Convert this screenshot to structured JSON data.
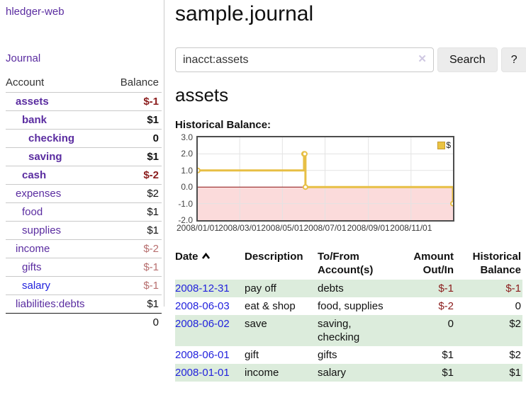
{
  "app": {
    "title": "hledger-web",
    "nav": {
      "journal": "Journal"
    }
  },
  "sidebar": {
    "accounts_table": {
      "headers": {
        "account": "Account",
        "balance": "Balance"
      },
      "rows": [
        {
          "name": "assets",
          "depth": 1,
          "bold": true,
          "balance": "$-1",
          "link_state": "visited"
        },
        {
          "name": "bank",
          "depth": 2,
          "bold": true,
          "balance": "$1",
          "link_state": "visited"
        },
        {
          "name": "checking",
          "depth": 3,
          "bold": true,
          "balance": "0",
          "link_state": "visited"
        },
        {
          "name": "saving",
          "depth": 3,
          "bold": true,
          "balance": "$1",
          "link_state": "visited"
        },
        {
          "name": "cash",
          "depth": 2,
          "bold": true,
          "balance": "$-2",
          "link_state": "visited"
        },
        {
          "name": "expenses",
          "depth": 1,
          "bold": false,
          "balance": "$2",
          "link_state": "visited"
        },
        {
          "name": "food",
          "depth": 2,
          "bold": false,
          "balance": "$1",
          "link_state": "visited"
        },
        {
          "name": "supplies",
          "depth": 2,
          "bold": false,
          "balance": "$1",
          "link_state": "visited"
        },
        {
          "name": "income",
          "depth": 1,
          "bold": false,
          "balance": "$-2",
          "link_state": "visited"
        },
        {
          "name": "gifts",
          "depth": 2,
          "bold": false,
          "balance": "$-1",
          "link_state": "visited"
        },
        {
          "name": "salary",
          "depth": 2,
          "bold": false,
          "balance": "$-1",
          "link_state": "unvisited"
        },
        {
          "name": "liabilities:debts",
          "depth": 1,
          "bold": false,
          "balance": "$1",
          "link_state": "visited"
        }
      ],
      "total": "0"
    }
  },
  "main": {
    "title": "sample.journal",
    "search": {
      "value": "inacct:assets",
      "clear_icon": "✕",
      "button_label": "Search",
      "help_label": "?"
    },
    "account_heading": "assets",
    "chart_label": "Historical Balance:"
  },
  "chart_data": {
    "type": "line",
    "title": "Historical Balance:",
    "step": true,
    "x_range": [
      "2008-01-01",
      "2008-12-31"
    ],
    "ylim": [
      -2,
      3
    ],
    "x_ticks": [
      {
        "label": "2008/01/01",
        "date": "2008-01-01"
      },
      {
        "label": "2008/03/01",
        "date": "2008-03-01"
      },
      {
        "label": "2008/05/01",
        "date": "2008-05-01"
      },
      {
        "label": "2008/07/01",
        "date": "2008-07-01"
      },
      {
        "label": "2008/09/01",
        "date": "2008-09-01"
      },
      {
        "label": "2008/11/01",
        "date": "2008-11-01"
      }
    ],
    "y_ticks": [
      {
        "label": "3.0",
        "value": 3
      },
      {
        "label": "2.0",
        "value": 2
      },
      {
        "label": "1.0",
        "value": 1
      },
      {
        "label": "0.0",
        "value": 0
      },
      {
        "label": "-1.0",
        "value": -1
      },
      {
        "label": "-2.0",
        "value": -2
      }
    ],
    "series": [
      {
        "name": "$",
        "color": "#e7bf45",
        "points": [
          [
            "2008-01-01",
            1
          ],
          [
            "2008-06-01",
            2
          ],
          [
            "2008-06-02",
            2
          ],
          [
            "2008-06-03",
            0
          ],
          [
            "2008-12-31",
            -1
          ]
        ]
      }
    ],
    "legend": {
      "label": "$",
      "position": "top-right"
    },
    "colors": {
      "grid": "#e3e3e3",
      "border": "#4d4d4d",
      "negative_region": "#fbdbdb",
      "zero_line": "#8b1010",
      "marker_fill": "#ffffff"
    }
  },
  "transactions": {
    "columns": [
      {
        "label": "Date",
        "sorted": "asc"
      },
      {
        "label": "Description"
      },
      {
        "label": "To/From Account(s)"
      },
      {
        "label": "Amount Out/In",
        "align": "right"
      },
      {
        "label": "Historical Balance",
        "align": "right"
      }
    ],
    "rows": [
      {
        "date": "2008-12-31",
        "description": "pay off",
        "accounts": "debts",
        "amount": "$-1",
        "balance": "$-1"
      },
      {
        "date": "2008-06-03",
        "description": "eat & shop",
        "accounts": "food, supplies",
        "amount": "$-2",
        "balance": "0"
      },
      {
        "date": "2008-06-02",
        "description": "save",
        "accounts": "saving, checking",
        "amount": "0",
        "balance": "$2"
      },
      {
        "date": "2008-06-01",
        "description": "gift",
        "accounts": "gifts",
        "amount": "$1",
        "balance": "$2"
      },
      {
        "date": "2008-01-01",
        "description": "income",
        "accounts": "salary",
        "amount": "$1",
        "balance": "$1"
      }
    ]
  },
  "colors": {
    "link_purple": "#5a2ca0",
    "link_blue": "#2222dd",
    "negative_strong": "#8b1c1c",
    "negative_muted": "#b76e6e",
    "row_stripe_green": "#dcecdc"
  }
}
